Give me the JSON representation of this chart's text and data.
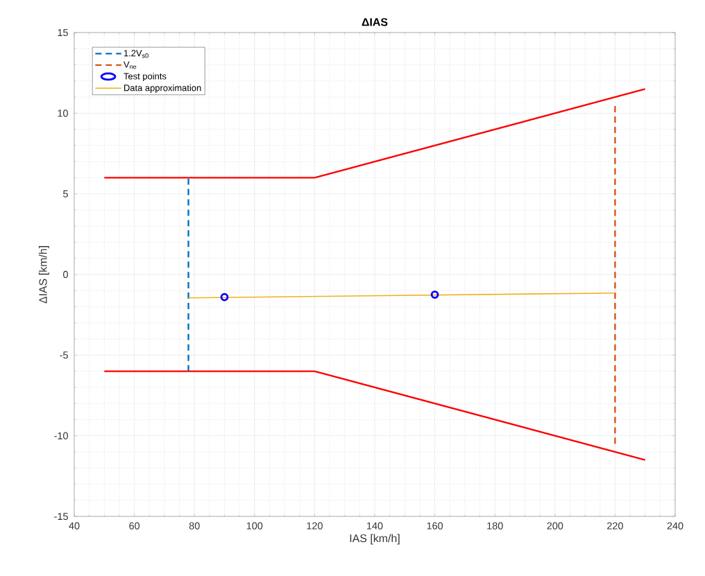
{
  "chart_data": {
    "type": "line",
    "title": "ΔIAS",
    "xlabel": "IAS [km/h]",
    "ylabel": "ΔIAS [km/h]",
    "xlim": [
      40,
      240
    ],
    "xticks": [
      40,
      60,
      80,
      100,
      120,
      140,
      160,
      180,
      200,
      220,
      240
    ],
    "ylim": [
      -15,
      15
    ],
    "yticks": [
      -15,
      -10,
      -5,
      0,
      5,
      10,
      15
    ],
    "grid": true,
    "legend": "top left",
    "series": [
      {
        "color": "#ff0000",
        "x": [
          50,
          120,
          230
        ],
        "values": [
          6,
          6,
          11.5
        ]
      },
      {
        "color": "#ff0000",
        "x": [
          50,
          120,
          230
        ],
        "values": [
          -6,
          -6,
          -11.5
        ]
      },
      {
        "name": "1.2V$_{s0}$",
        "color": "#0072bd",
        "line_style": "dashed",
        "x": [
          78,
          78
        ],
        "values": [
          -6,
          6
        ]
      },
      {
        "name": "V$_{ne}$",
        "color": "#d95319",
        "line_style": "dashed",
        "x": [
          220,
          220
        ],
        "values": [
          -10.5,
          10.5
        ]
      },
      {
        "type": "scatter",
        "name": "Test points",
        "color": "#0000ff",
        "marker": "circle",
        "x": [
          90,
          160
        ],
        "values": [
          -1.4,
          -1.25
        ]
      },
      {
        "name": "Data approximation",
        "color": "#edb120",
        "x": [
          78,
          220
        ],
        "values": [
          -1.45,
          -1.15
        ]
      }
    ]
  }
}
